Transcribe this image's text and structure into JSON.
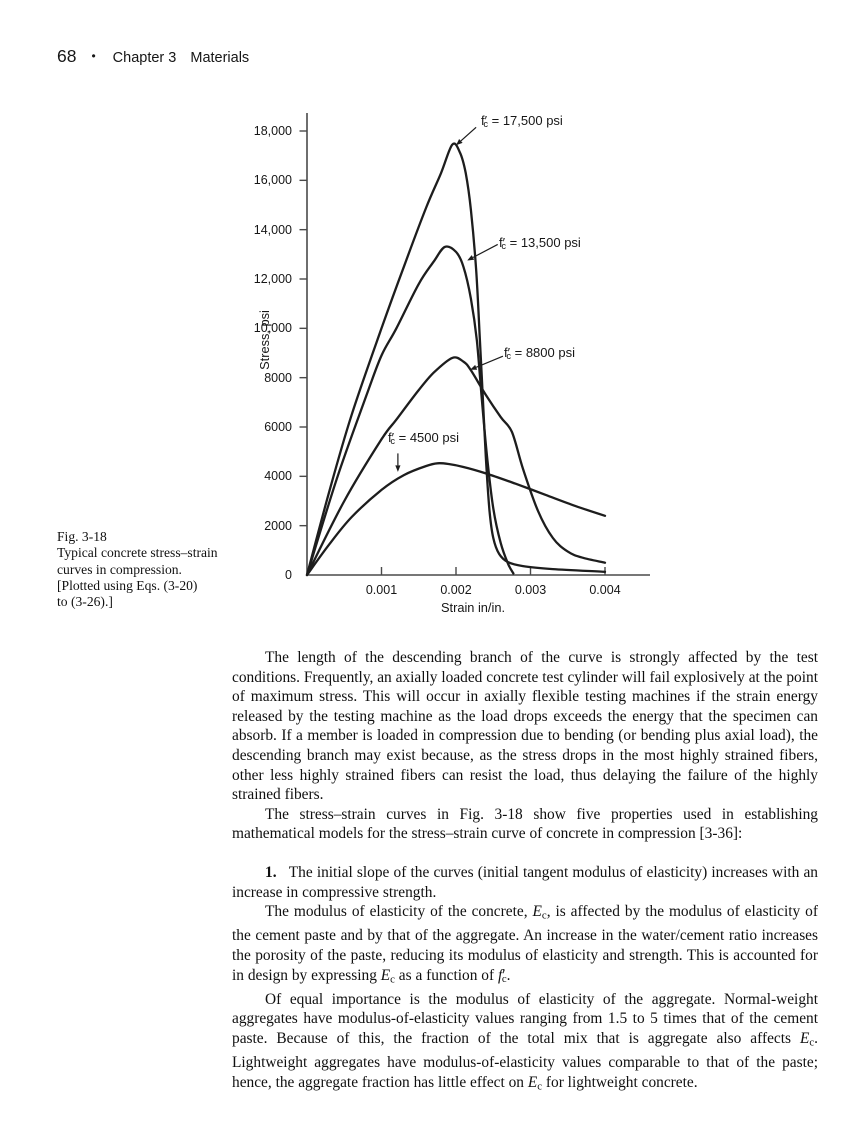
{
  "page": {
    "number": "68",
    "bullet": "•",
    "chapter": "Chapter 3",
    "section": "Materials"
  },
  "figure": {
    "caption": "Fig. 3-18\nTypical concrete stress–strain\ncurves in compression.\n[Plotted using Eqs. (3-20)\nto (3-26).]"
  },
  "chart_data": {
    "type": "line",
    "title": "",
    "xlabel": "Strain in/in.",
    "ylabel": "Stress, psi",
    "xlim": [
      0,
      0.0046
    ],
    "ylim": [
      0,
      18700
    ],
    "grid": false,
    "legend_position": "inline-annotations",
    "xticks": {
      "values": [
        0.001,
        0.002,
        0.003,
        0.004
      ],
      "labels": [
        "0.001",
        "0.002",
        "0.003",
        "0.004"
      ]
    },
    "yticks": {
      "values": [
        0,
        2000,
        4000,
        6000,
        8000,
        10000,
        12000,
        14000,
        16000,
        18000
      ],
      "labels": [
        "0",
        "2000",
        "4000",
        "6000",
        "8000",
        "10,000",
        "12,000",
        "14,000",
        "16,000",
        "18,000"
      ]
    },
    "series": [
      {
        "name": "fc_17500",
        "label": "f′c = 17,500 psi",
        "label_html": "f&#8242;<sub>c</sub> = 17,500 psi",
        "peak_psi": 17500,
        "points": [
          [
            0,
            0
          ],
          [
            0.0003,
            3400
          ],
          [
            0.0006,
            6500
          ],
          [
            0.001,
            10000
          ],
          [
            0.0013,
            12500
          ],
          [
            0.0016,
            14900
          ],
          [
            0.0018,
            16300
          ],
          [
            0.00195,
            17450
          ],
          [
            0.00205,
            17150
          ],
          [
            0.00213,
            16300
          ],
          [
            0.0022,
            14800
          ],
          [
            0.00227,
            12400
          ],
          [
            0.00232,
            9600
          ],
          [
            0.00236,
            7200
          ],
          [
            0.0024,
            4800
          ],
          [
            0.00245,
            2600
          ],
          [
            0.0025,
            1500
          ],
          [
            0.00258,
            850
          ],
          [
            0.0027,
            520
          ],
          [
            0.0029,
            360
          ],
          [
            0.0033,
            240
          ],
          [
            0.004,
            130
          ]
        ]
      },
      {
        "name": "fc_13500",
        "label": "f′c = 13,500 psi",
        "label_html": "f&#8242;<sub>c</sub> = 13,500 psi",
        "peak_psi": 13500,
        "points": [
          [
            0,
            0
          ],
          [
            0.0004,
            3900
          ],
          [
            0.0008,
            7300
          ],
          [
            0.001,
            8900
          ],
          [
            0.0012,
            10000
          ],
          [
            0.0015,
            11800
          ],
          [
            0.0017,
            12700
          ],
          [
            0.00185,
            13300
          ],
          [
            0.002,
            13100
          ],
          [
            0.0021,
            12500
          ],
          [
            0.0022,
            11200
          ],
          [
            0.00228,
            9500
          ],
          [
            0.00235,
            7000
          ],
          [
            0.00242,
            4700
          ],
          [
            0.0025,
            2700
          ],
          [
            0.0026,
            1300
          ],
          [
            0.0027,
            450
          ],
          [
            0.00277,
            60
          ]
        ]
      },
      {
        "name": "fc_8800",
        "label": "f′c = 8800 psi",
        "label_html": "f&#8242;<sub>c</sub> = 8800 psi",
        "peak_psi": 8800,
        "points": [
          [
            0,
            0
          ],
          [
            0.0005,
            3000
          ],
          [
            0.001,
            5500
          ],
          [
            0.0012,
            6300
          ],
          [
            0.0015,
            7500
          ],
          [
            0.0017,
            8200
          ],
          [
            0.00195,
            8800
          ],
          [
            0.0021,
            8650
          ],
          [
            0.0022,
            8300
          ],
          [
            0.0024,
            7300
          ],
          [
            0.0026,
            6400
          ],
          [
            0.00275,
            5800
          ],
          [
            0.0029,
            4300
          ],
          [
            0.0031,
            2600
          ],
          [
            0.0033,
            1500
          ],
          [
            0.0035,
            950
          ],
          [
            0.0037,
            700
          ],
          [
            0.004,
            500
          ]
        ]
      },
      {
        "name": "fc_4500",
        "label": "f′c = 4500 psi",
        "label_html": "f&#8242;<sub>c</sub> = 4500 psi",
        "peak_psi": 4500,
        "points": [
          [
            0,
            0
          ],
          [
            0.0003,
            1250
          ],
          [
            0.0006,
            2350
          ],
          [
            0.001,
            3450
          ],
          [
            0.0013,
            4050
          ],
          [
            0.0016,
            4420
          ],
          [
            0.00175,
            4530
          ],
          [
            0.0019,
            4500
          ],
          [
            0.0021,
            4380
          ],
          [
            0.0024,
            4120
          ],
          [
            0.0028,
            3700
          ],
          [
            0.0032,
            3250
          ],
          [
            0.0036,
            2800
          ],
          [
            0.004,
            2400
          ]
        ]
      }
    ],
    "annotations": [
      {
        "series": "fc_17500",
        "arrow_from": [
          0.00227,
          18150
        ],
        "arrow_to": [
          0.002,
          17420
        ]
      },
      {
        "series": "fc_13500",
        "arrow_from": [
          0.00256,
          13400
        ],
        "arrow_to": [
          0.00215,
          12750
        ]
      },
      {
        "series": "fc_8800",
        "arrow_from": [
          0.00263,
          8870
        ],
        "arrow_to": [
          0.00219,
          8320
        ]
      },
      {
        "series": "fc_4500",
        "arrow_from": [
          0.00122,
          4930
        ],
        "arrow_to": [
          0.00122,
          4180
        ]
      }
    ],
    "colors": {
      "curve": "#1d1d1d",
      "axis": "#4a4a4a"
    }
  },
  "text": {
    "p1": "The length of the descending branch of the curve is strongly affected by the test conditions. Frequently, an axially loaded concrete test cylinder will fail explosively at the point of maximum stress. This will occur in axially flexible testing machines if the strain energy released by the testing machine as the load drops exceeds the energy that the specimen can absorb. If a member is loaded in compression due to bending (or bending plus axial load), the descending branch may exist because, as the stress drops in the most highly strained fibers, other less highly strained fibers can resist the load, thus delaying the failure of the highly strained fibers.",
    "p2": "The stress–strain curves in Fig. 3-18 show five properties used in establishing mathematical models for the stress–strain curve of concrete in compression [3-36]:",
    "item1": "<b>1.</b>&nbsp;&nbsp; The initial slope of the curves (initial tangent modulus of elasticity) increases with an increase in compressive strength.",
    "p3": "The modulus of elasticity of the concrete, <i>E</i><sub>c</sub>, is affected by the modulus of elasticity of the cement paste and by that of the aggregate. An increase in the water/cement ratio increases the porosity of the paste, reducing its modulus of elasticity and strength. This is accounted for in design by expressing <i>E</i><sub>c</sub> as a function of <i>f</i>&#8242;<sub class=\"tk\">c</sub>.",
    "p4": "Of equal importance is the modulus of elasticity of the aggregate. Normal-weight aggregates have modulus-of-elasticity values ranging from 1.5 to 5 times that of the cement paste. Because of this, the fraction of the total mix that is aggregate also affects <i>E</i><sub>c</sub>. Lightweight aggregates have modulus-of-elasticity values comparable to that of the paste; hence, the aggregate fraction has little effect on <i>E</i><sub>c</sub> for lightweight concrete."
  }
}
